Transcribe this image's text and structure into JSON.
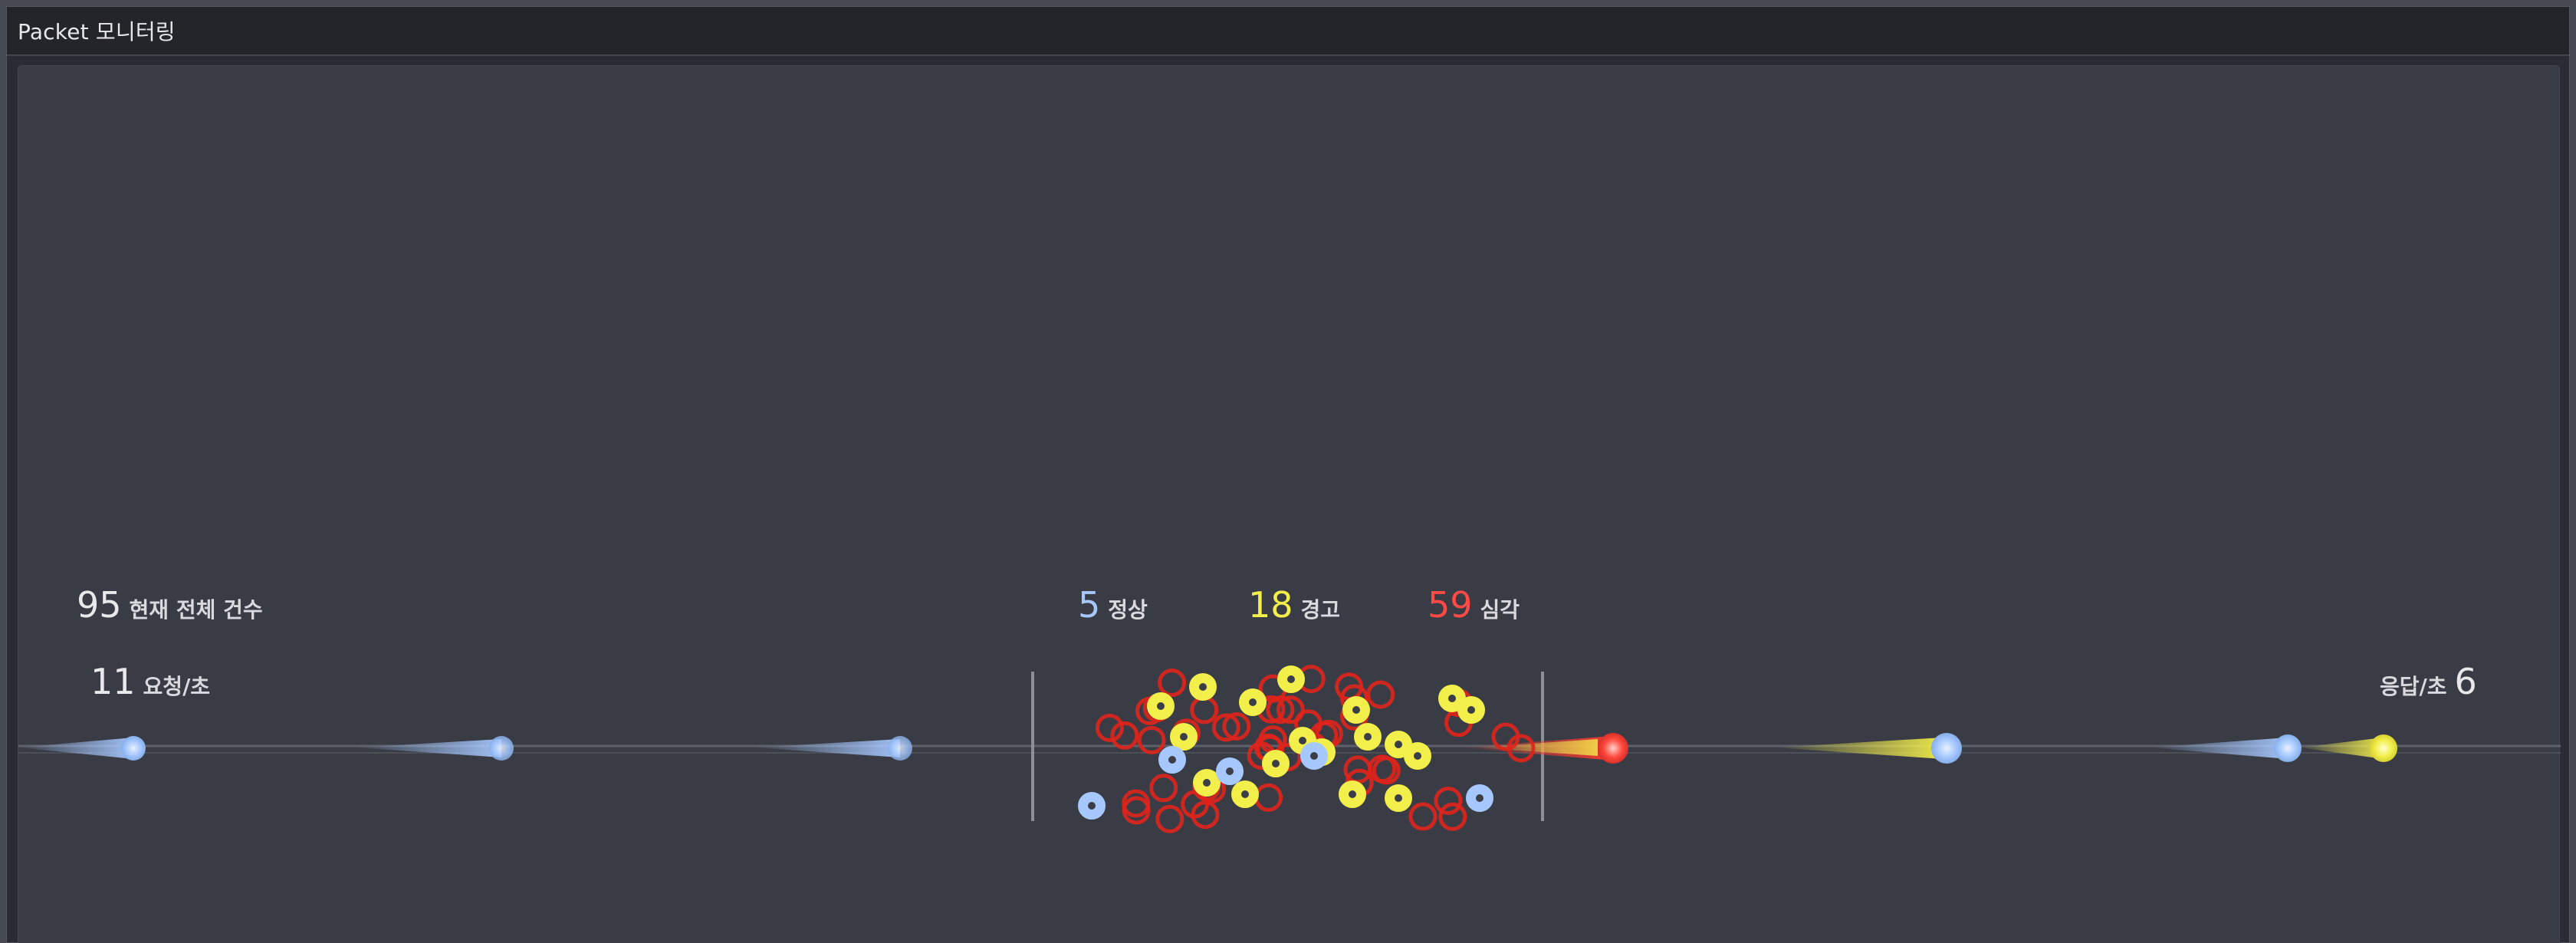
{
  "window": {
    "title": "Packet 모니터링"
  },
  "stats": {
    "total": {
      "value": "95",
      "label": "현재 전체 건수"
    },
    "request": {
      "value": "11",
      "label": "요청/초"
    },
    "response": {
      "value": "6",
      "label": "응답/초"
    },
    "normal": {
      "value": "5",
      "label": "정상"
    },
    "warning": {
      "value": "18",
      "label": "경고"
    },
    "critical": {
      "value": "59",
      "label": "심각"
    }
  },
  "colors": {
    "normal": "#a6c8ff",
    "warning": "#f2ee4a",
    "critical": "#ff4a45",
    "background": "#393c45"
  }
}
